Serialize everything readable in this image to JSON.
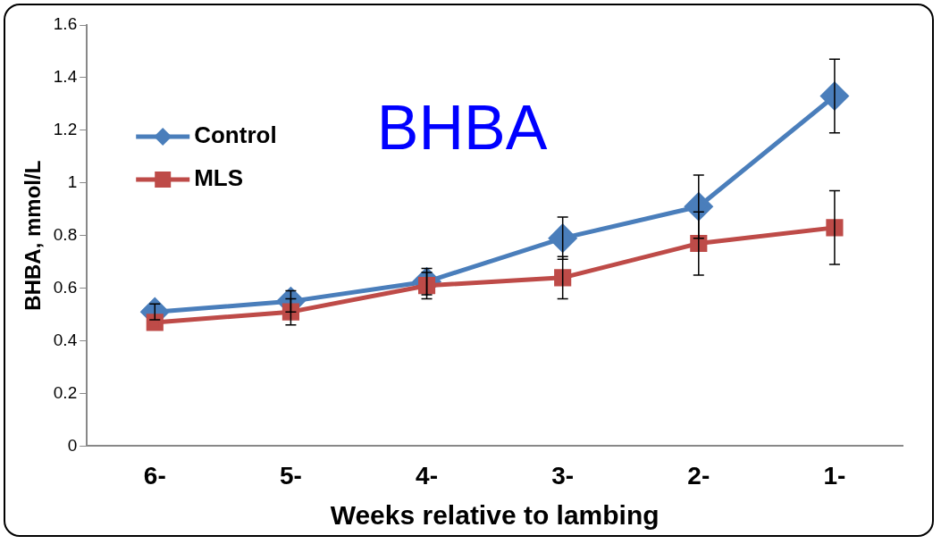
{
  "chart_data": {
    "type": "line",
    "title": "BHBA",
    "xlabel": "Weeks relative to lambing",
    "ylabel": "BHBA, mmol/L",
    "categories": [
      "6-",
      "5-",
      "4-",
      "3-",
      "2-",
      "1-"
    ],
    "series": [
      {
        "name": "Control",
        "color": "#4a7ebb",
        "marker": "diamond",
        "values": [
          0.51,
          0.55,
          0.625,
          0.79,
          0.91,
          1.33
        ],
        "errors": [
          0.03,
          0.04,
          0.05,
          0.08,
          0.12,
          0.14
        ]
      },
      {
        "name": "MLS",
        "color": "#be4b48",
        "marker": "square",
        "values": [
          0.47,
          0.51,
          0.61,
          0.64,
          0.77,
          0.83
        ],
        "errors": [
          null,
          0.05,
          0.05,
          0.08,
          0.12,
          0.14
        ]
      }
    ],
    "ylim": [
      0,
      1.6
    ],
    "yticks": [
      0,
      0.2,
      0.4,
      0.6,
      0.8,
      1,
      1.2,
      1.4,
      1.6
    ],
    "grid": false,
    "legend": "top left",
    "line_style": "solid"
  }
}
